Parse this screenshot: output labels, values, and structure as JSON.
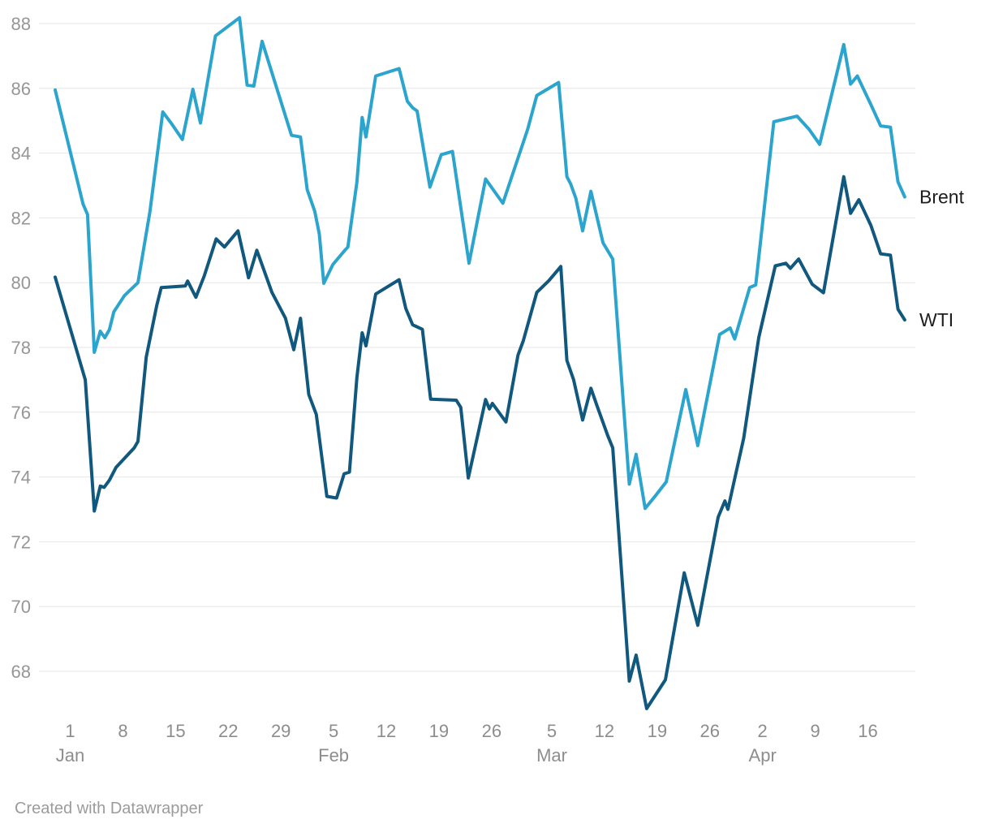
{
  "attribution": {
    "text": "Created with Datawrapper"
  },
  "chart_data": {
    "type": "line",
    "title": "",
    "xlabel": "",
    "ylabel": "",
    "x_unit": "day index (0 = first plotted day, ticks dated below)",
    "grid": "horizontal",
    "legend_position": "line-end-right",
    "y_ticks": [
      88,
      86,
      84,
      82,
      80,
      78,
      76,
      74,
      72,
      70,
      68
    ],
    "y_axis_top": 88,
    "y_axis_bottom": 68,
    "x_ticks": [
      {
        "day": 2,
        "label": "1",
        "month": "Jan"
      },
      {
        "day": 9,
        "label": "8"
      },
      {
        "day": 16,
        "label": "15"
      },
      {
        "day": 23,
        "label": "22"
      },
      {
        "day": 30,
        "label": "29"
      },
      {
        "day": 37,
        "label": "5",
        "month": "Feb"
      },
      {
        "day": 44,
        "label": "12"
      },
      {
        "day": 51,
        "label": "19"
      },
      {
        "day": 58,
        "label": "26"
      },
      {
        "day": 66,
        "label": "5",
        "month": "Mar"
      },
      {
        "day": 73,
        "label": "12"
      },
      {
        "day": 80,
        "label": "19"
      },
      {
        "day": 87,
        "label": "26"
      },
      {
        "day": 94,
        "label": "2",
        "month": "Apr"
      },
      {
        "day": 101,
        "label": "9"
      },
      {
        "day": 108,
        "label": "16"
      }
    ],
    "series": [
      {
        "name": "Brent",
        "color": "#2CA5CE",
        "points": [
          [
            0,
            85.95
          ],
          [
            3.7,
            82.43
          ],
          [
            4.3,
            82.1
          ],
          [
            5.2,
            77.85
          ],
          [
            6,
            78.5
          ],
          [
            6.6,
            78.3
          ],
          [
            7.2,
            78.55
          ],
          [
            7.8,
            79.1
          ],
          [
            9.2,
            79.6
          ],
          [
            11,
            80.0
          ],
          [
            12.6,
            82.2
          ],
          [
            14.3,
            85.27
          ],
          [
            15.5,
            84.9
          ],
          [
            16.9,
            84.42
          ],
          [
            18.3,
            85.97
          ],
          [
            19.3,
            84.93
          ],
          [
            21.3,
            87.62
          ],
          [
            24.5,
            88.18
          ],
          [
            25.5,
            86.1
          ],
          [
            26.4,
            86.07
          ],
          [
            27.5,
            87.45
          ],
          [
            31.4,
            84.55
          ],
          [
            32.6,
            84.5
          ],
          [
            33.5,
            82.87
          ],
          [
            34.5,
            82.2
          ],
          [
            35.1,
            81.5
          ],
          [
            35.7,
            79.98
          ],
          [
            36.9,
            80.56
          ],
          [
            38.5,
            81.0
          ],
          [
            38.9,
            81.1
          ],
          [
            40.1,
            83.1
          ],
          [
            40.8,
            85.1
          ],
          [
            41.3,
            84.5
          ],
          [
            42.6,
            86.38
          ],
          [
            45.7,
            86.61
          ],
          [
            46.8,
            85.6
          ],
          [
            47.5,
            85.4
          ],
          [
            48.1,
            85.3
          ],
          [
            49.8,
            82.95
          ],
          [
            51.3,
            83.95
          ],
          [
            52.8,
            84.05
          ],
          [
            55,
            80.6
          ],
          [
            57.2,
            83.2
          ],
          [
            59.5,
            82.45
          ],
          [
            62.8,
            84.74
          ],
          [
            64,
            85.78
          ],
          [
            66.9,
            86.18
          ],
          [
            68,
            83.27
          ],
          [
            68.5,
            83.05
          ],
          [
            69.2,
            82.6
          ],
          [
            70.1,
            81.6
          ],
          [
            71.2,
            82.82
          ],
          [
            72.8,
            81.23
          ],
          [
            74.1,
            80.73
          ],
          [
            76.3,
            73.78
          ],
          [
            77.2,
            74.7
          ],
          [
            78.4,
            73.03
          ],
          [
            79.7,
            73.4
          ],
          [
            81.2,
            73.85
          ],
          [
            83.8,
            76.7
          ],
          [
            85.4,
            74.97
          ],
          [
            88.3,
            78.4
          ],
          [
            89.7,
            78.6
          ],
          [
            90.3,
            78.26
          ],
          [
            92.3,
            79.85
          ],
          [
            93.1,
            79.93
          ],
          [
            95.5,
            84.97
          ],
          [
            98.6,
            85.14
          ],
          [
            100.2,
            84.73
          ],
          [
            101.6,
            84.27
          ],
          [
            104.8,
            87.35
          ],
          [
            105.7,
            86.13
          ],
          [
            106.6,
            86.38
          ],
          [
            108.4,
            85.5
          ],
          [
            109.7,
            84.84
          ],
          [
            111,
            84.8
          ],
          [
            112,
            83.11
          ],
          [
            112.9,
            82.65
          ]
        ]
      },
      {
        "name": "WTI",
        "color": "#10587E",
        "points": [
          [
            0,
            80.17
          ],
          [
            4,
            77.0
          ],
          [
            5.2,
            72.95
          ],
          [
            6,
            73.72
          ],
          [
            6.5,
            73.68
          ],
          [
            7.2,
            73.9
          ],
          [
            8.1,
            74.3
          ],
          [
            10.5,
            74.9
          ],
          [
            11,
            75.1
          ],
          [
            12.1,
            77.7
          ],
          [
            13.5,
            79.3
          ],
          [
            14.1,
            79.85
          ],
          [
            17.3,
            79.9
          ],
          [
            17.6,
            80.05
          ],
          [
            18.7,
            79.55
          ],
          [
            19.8,
            80.2
          ],
          [
            21.4,
            81.35
          ],
          [
            22.5,
            81.1
          ],
          [
            24.3,
            81.6
          ],
          [
            25.7,
            80.15
          ],
          [
            26.8,
            81.0
          ],
          [
            28.8,
            79.7
          ],
          [
            30.6,
            78.9
          ],
          [
            31.7,
            77.93
          ],
          [
            32.6,
            78.9
          ],
          [
            33.7,
            76.55
          ],
          [
            34.7,
            75.93
          ],
          [
            36.1,
            73.4
          ],
          [
            37.4,
            73.35
          ],
          [
            38.4,
            74.1
          ],
          [
            39.1,
            74.15
          ],
          [
            40.1,
            77.07
          ],
          [
            40.8,
            78.45
          ],
          [
            41.3,
            78.05
          ],
          [
            42.6,
            79.65
          ],
          [
            45.7,
            80.09
          ],
          [
            46.6,
            79.2
          ],
          [
            47.5,
            78.7
          ],
          [
            48.8,
            78.56
          ],
          [
            49.9,
            76.4
          ],
          [
            53.3,
            76.37
          ],
          [
            53.9,
            76.15
          ],
          [
            54.9,
            73.97
          ],
          [
            57.2,
            76.39
          ],
          [
            57.7,
            76.1
          ],
          [
            58.1,
            76.27
          ],
          [
            59.9,
            75.7
          ],
          [
            61.5,
            77.76
          ],
          [
            62.2,
            78.2
          ],
          [
            64,
            79.7
          ],
          [
            65.6,
            80.06
          ],
          [
            67.2,
            80.5
          ],
          [
            68,
            77.6
          ],
          [
            68.9,
            77.0
          ],
          [
            70.1,
            75.76
          ],
          [
            71.2,
            76.74
          ],
          [
            72,
            76.2
          ],
          [
            73.4,
            75.3
          ],
          [
            74.1,
            74.9
          ],
          [
            76.3,
            67.7
          ],
          [
            77.2,
            68.5
          ],
          [
            78.6,
            66.85
          ],
          [
            81.1,
            67.74
          ],
          [
            83.6,
            71.04
          ],
          [
            85.4,
            69.42
          ],
          [
            88.1,
            72.76
          ],
          [
            89,
            73.26
          ],
          [
            89.4,
            73.0
          ],
          [
            91.5,
            75.2
          ],
          [
            93.5,
            78.3
          ],
          [
            95.7,
            80.52
          ],
          [
            97.1,
            80.6
          ],
          [
            97.7,
            80.44
          ],
          [
            98.8,
            80.73
          ],
          [
            100.6,
            79.95
          ],
          [
            102.1,
            79.69
          ],
          [
            104.8,
            83.27
          ],
          [
            105.7,
            82.14
          ],
          [
            106.8,
            82.56
          ],
          [
            108.4,
            81.77
          ],
          [
            109.7,
            80.89
          ],
          [
            111,
            80.85
          ],
          [
            112,
            79.18
          ],
          [
            112.9,
            78.85
          ]
        ]
      }
    ]
  }
}
